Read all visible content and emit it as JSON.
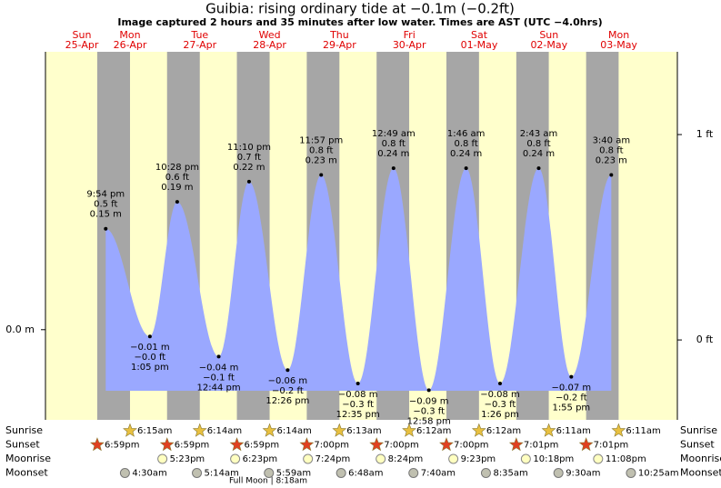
{
  "chart_data": {
    "type": "area",
    "title": "Guibia: rising  ordinary tide at −0.1m (−0.2ft)",
    "subtitle": "Image captured 2 hours and 35 minutes after low water. Times are AST (UTC −4.0hrs)",
    "days": [
      {
        "weekday": "Sun",
        "date": "25-Apr"
      },
      {
        "weekday": "Mon",
        "date": "26-Apr"
      },
      {
        "weekday": "Tue",
        "date": "27-Apr"
      },
      {
        "weekday": "Wed",
        "date": "28-Apr"
      },
      {
        "weekday": "Thu",
        "date": "29-Apr"
      },
      {
        "weekday": "Fri",
        "date": "30-Apr"
      },
      {
        "weekday": "Sat",
        "date": "01-May"
      },
      {
        "weekday": "Sun",
        "date": "02-May"
      },
      {
        "weekday": "Mon",
        "date": "03-May"
      }
    ],
    "x": [
      "9:54 pm",
      "1:05 pm",
      "10:28 pm",
      "12:44 pm",
      "11:10 pm",
      "12:26 pm",
      "11:57 pm",
      "12:35 pm",
      "12:49 am",
      "12:58 pm",
      "1:46 am",
      "1:26 pm",
      "2:43 am",
      "1:55 pm",
      "3:40 am"
    ],
    "series": [
      {
        "color": "#9aa8ff",
        "values": [
          0.15,
          -0.01,
          0.19,
          -0.04,
          0.22,
          -0.06,
          0.23,
          -0.08,
          0.24,
          -0.09,
          0.24,
          -0.08,
          0.24,
          -0.07,
          0.23
        ],
        "value_labels": [
          "0.15 m",
          "−0.01 m",
          "0.19 m",
          "−0.04 m",
          "0.22 m",
          "−0.06 m",
          "0.23 m",
          "−0.08 m",
          "0.24 m",
          "−0.09 m",
          "0.24 m",
          "−0.08 m",
          "0.24 m",
          "−0.07 m",
          "0.23 m"
        ],
        "ft_labels": [
          "0.5 ft",
          "−0.0 ft",
          "0.6 ft",
          "−0.1 ft",
          "0.7 ft",
          "−0.2 ft",
          "0.8 ft",
          "−0.3 ft",
          "0.8 ft",
          "−0.3 ft",
          "0.8 ft",
          "−0.3 ft",
          "0.8 ft",
          "−0.2 ft",
          "0.8 ft"
        ]
      }
    ],
    "ylim": [
      -0.134,
      0.413
    ],
    "yticks": [
      {
        "value": 0,
        "label": "0.0 m"
      }
    ],
    "y2lim": [
      -0.389,
      1.403
    ],
    "y2ticks": [
      {
        "value": 0,
        "label": "0 ft"
      },
      {
        "value": 1,
        "label": "1 ft"
      }
    ],
    "day_color": "#ffffcc",
    "night_color": "#a6a6a6",
    "rows": [
      {
        "label": "Sunrise",
        "kind": "sunrise",
        "times": [
          null,
          "6:15am",
          "6:14am",
          "6:14am",
          "6:13am",
          "6:12am",
          "6:12am",
          "6:11am",
          "6:11am"
        ]
      },
      {
        "label": "Sunset",
        "kind": "sunset",
        "times": [
          "6:59pm",
          "6:59pm",
          "6:59pm",
          "7:00pm",
          "7:00pm",
          "7:00pm",
          "7:01pm",
          "7:01pm",
          null
        ]
      },
      {
        "label": "Moonrise",
        "kind": "moonrise",
        "times": [
          null,
          "5:23pm",
          "6:23pm",
          "7:24pm",
          "8:24pm",
          "9:23pm",
          "10:18pm",
          "11:08pm",
          null
        ]
      },
      {
        "label": "Moonset",
        "kind": "moonset",
        "times": [
          null,
          "4:30am",
          "5:14am",
          "5:59am",
          "6:48am",
          "7:40am",
          "8:35am",
          "9:30am",
          "10:25am"
        ]
      }
    ],
    "full_moon": "Full Moon | 8:18am"
  }
}
